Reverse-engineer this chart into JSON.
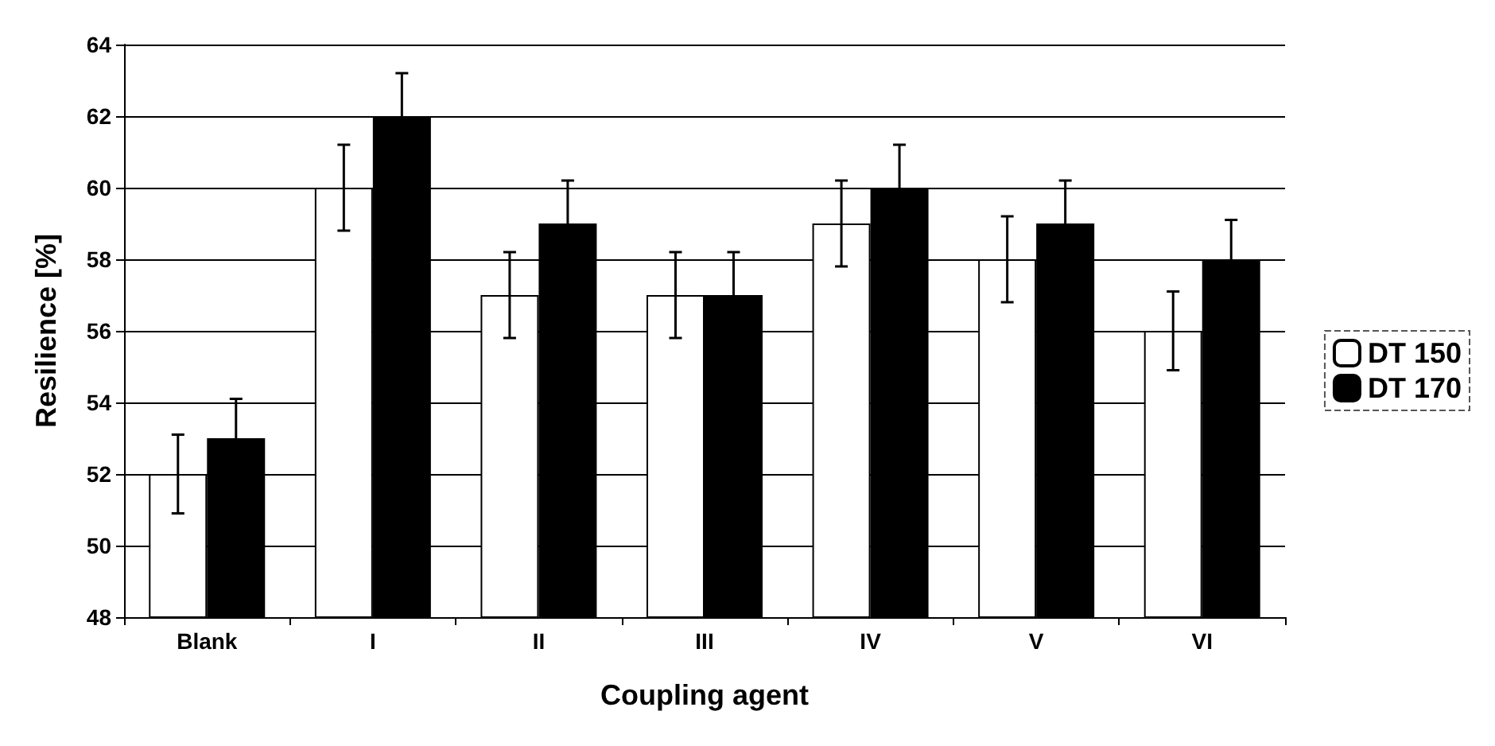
{
  "chart_data": {
    "type": "bar",
    "xlabel": "Coupling agent",
    "ylabel": "Resilience [%]",
    "categories": [
      "Blank",
      "I",
      "II",
      "III",
      "IV",
      "V",
      "VI"
    ],
    "series": [
      {
        "name": "DT 150",
        "color": "#ffffff",
        "values": [
          52,
          60,
          57,
          57,
          59,
          58,
          56
        ],
        "errors": [
          1.1,
          1.2,
          1.2,
          1.2,
          1.2,
          1.2,
          1.1
        ]
      },
      {
        "name": "DT 170",
        "color": "#000000",
        "values": [
          53,
          62,
          59,
          57,
          60,
          59,
          58
        ],
        "errors": [
          1.1,
          1.2,
          1.2,
          1.2,
          1.2,
          1.2,
          1.1
        ]
      }
    ],
    "ylim": [
      48,
      64
    ],
    "yticks": [
      48,
      50,
      52,
      54,
      56,
      58,
      60,
      62,
      64
    ],
    "grid": "y",
    "legend": "right"
  }
}
